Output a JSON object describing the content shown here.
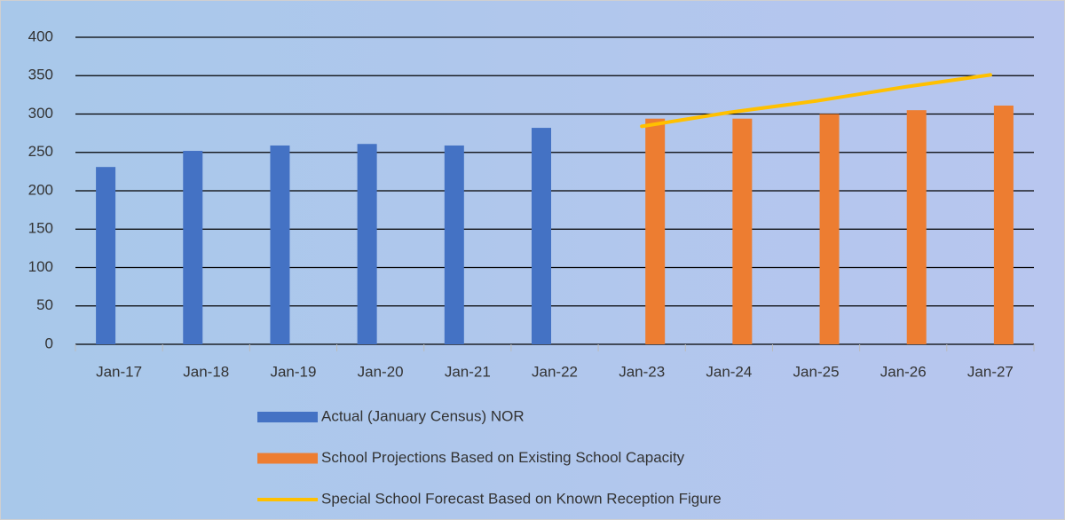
{
  "chart_data": {
    "type": "bar",
    "categories": [
      "Jan-17",
      "Jan-18",
      "Jan-19",
      "Jan-20",
      "Jan-21",
      "Jan-22",
      "Jan-23",
      "Jan-24",
      "Jan-25",
      "Jan-26",
      "Jan-27"
    ],
    "series": [
      {
        "name": "Actual (January Census) NOR",
        "color": "#4472c4",
        "values": [
          231,
          252,
          259,
          261,
          259,
          282,
          null,
          null,
          null,
          null,
          null
        ]
      },
      {
        "name": "School Projections Based on Existing School Capacity",
        "color": "#ed7d31",
        "values": [
          null,
          null,
          null,
          null,
          null,
          null,
          294,
          294,
          300,
          305,
          311
        ]
      },
      {
        "name": "Special School Forecast Based on Known Reception Figure",
        "color": "#ffc000",
        "type": "line",
        "values": [
          null,
          null,
          null,
          null,
          null,
          null,
          284,
          302,
          317,
          335,
          351
        ]
      }
    ],
    "ylim": [
      0,
      400
    ],
    "yticks": [
      0,
      50,
      100,
      150,
      200,
      250,
      300,
      350,
      400
    ],
    "grid": true,
    "legend": "bottom"
  }
}
